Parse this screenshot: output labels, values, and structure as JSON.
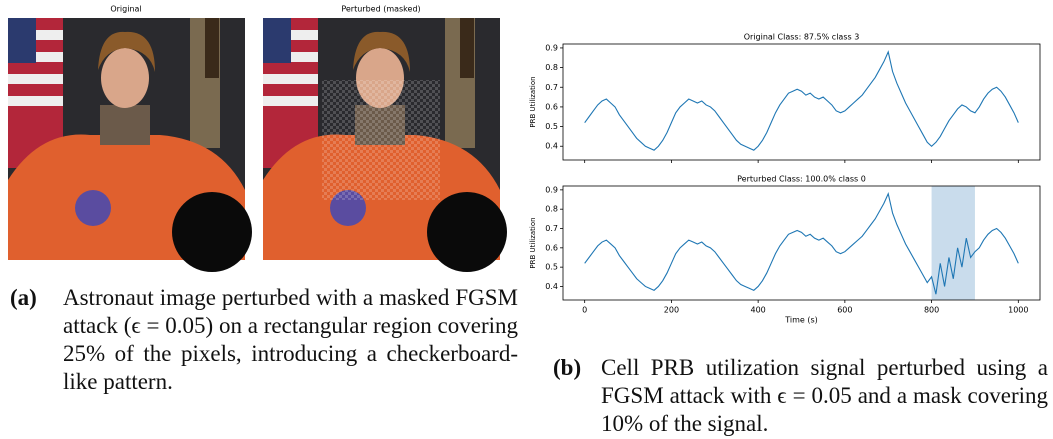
{
  "images": [
    {
      "title": "Original"
    },
    {
      "title": "Perturbed (masked)"
    }
  ],
  "caption_a": {
    "label": "(a)",
    "text": "Astronaut image perturbed with a masked FGSM attack (ϵ = 0.05) on a rectangular region covering 25% of the pixels, introducing a checkerboard-like pattern."
  },
  "caption_b": {
    "label": "(b)",
    "text": "Cell PRB utilization signal perturbed using a FGSM attack with ϵ = 0.05 and a mask covering 10% of the signal."
  },
  "chart_data": [
    {
      "type": "line",
      "title": "Original Class: 87.5% class 3",
      "ylabel": "PRB Utilization",
      "color": "#1f77b4",
      "x": [
        0,
        10,
        20,
        30,
        40,
        50,
        60,
        70,
        80,
        90,
        100,
        110,
        120,
        130,
        140,
        150,
        160,
        170,
        180,
        190,
        200,
        210,
        220,
        230,
        240,
        250,
        260,
        270,
        280,
        290,
        300,
        310,
        320,
        330,
        340,
        350,
        360,
        370,
        380,
        390,
        400,
        410,
        420,
        430,
        440,
        450,
        460,
        470,
        480,
        490,
        500,
        510,
        520,
        530,
        540,
        550,
        560,
        570,
        580,
        590,
        600,
        610,
        620,
        630,
        640,
        650,
        660,
        670,
        680,
        690,
        700,
        710,
        720,
        730,
        740,
        750,
        760,
        770,
        780,
        790,
        800,
        810,
        820,
        830,
        840,
        850,
        860,
        870,
        880,
        890,
        900,
        910,
        920,
        930,
        940,
        950,
        960,
        970,
        980,
        990,
        1000
      ],
      "values": [
        0.52,
        0.55,
        0.58,
        0.61,
        0.63,
        0.64,
        0.62,
        0.6,
        0.56,
        0.53,
        0.5,
        0.47,
        0.44,
        0.42,
        0.4,
        0.39,
        0.38,
        0.4,
        0.43,
        0.47,
        0.52,
        0.57,
        0.6,
        0.62,
        0.64,
        0.63,
        0.62,
        0.63,
        0.61,
        0.6,
        0.58,
        0.55,
        0.52,
        0.49,
        0.46,
        0.43,
        0.41,
        0.4,
        0.39,
        0.38,
        0.4,
        0.43,
        0.47,
        0.52,
        0.57,
        0.61,
        0.64,
        0.67,
        0.68,
        0.69,
        0.68,
        0.66,
        0.67,
        0.65,
        0.64,
        0.65,
        0.63,
        0.61,
        0.58,
        0.57,
        0.58,
        0.6,
        0.62,
        0.64,
        0.66,
        0.69,
        0.72,
        0.75,
        0.79,
        0.83,
        0.88,
        0.78,
        0.72,
        0.67,
        0.62,
        0.58,
        0.54,
        0.5,
        0.46,
        0.42,
        0.4,
        0.42,
        0.45,
        0.49,
        0.53,
        0.56,
        0.59,
        0.61,
        0.6,
        0.58,
        0.57,
        0.6,
        0.64,
        0.67,
        0.69,
        0.7,
        0.68,
        0.65,
        0.61,
        0.57,
        0.52
      ],
      "xlim": [
        -50,
        1050
      ],
      "xticks": [
        0,
        200,
        400,
        600,
        800,
        1000
      ],
      "xtick_labels": false,
      "ylim": [
        0.33,
        0.92
      ],
      "yticks": [
        0.4,
        0.5,
        0.6,
        0.7,
        0.8,
        0.9
      ]
    },
    {
      "type": "line",
      "title": "Perturbed Class: 100.0% class 0",
      "ylabel": "PRB Utilization",
      "xlabel": "Time (s)",
      "color": "#1f77b4",
      "x": [
        0,
        10,
        20,
        30,
        40,
        50,
        60,
        70,
        80,
        90,
        100,
        110,
        120,
        130,
        140,
        150,
        160,
        170,
        180,
        190,
        200,
        210,
        220,
        230,
        240,
        250,
        260,
        270,
        280,
        290,
        300,
        310,
        320,
        330,
        340,
        350,
        360,
        370,
        380,
        390,
        400,
        410,
        420,
        430,
        440,
        450,
        460,
        470,
        480,
        490,
        500,
        510,
        520,
        530,
        540,
        550,
        560,
        570,
        580,
        590,
        600,
        610,
        620,
        630,
        640,
        650,
        660,
        670,
        680,
        690,
        700,
        710,
        720,
        730,
        740,
        750,
        760,
        770,
        780,
        790,
        800,
        810,
        820,
        830,
        840,
        850,
        860,
        870,
        880,
        890,
        900,
        910,
        920,
        930,
        940,
        950,
        960,
        970,
        980,
        990,
        1000
      ],
      "values": [
        0.52,
        0.55,
        0.58,
        0.61,
        0.63,
        0.64,
        0.62,
        0.6,
        0.56,
        0.53,
        0.5,
        0.47,
        0.44,
        0.42,
        0.4,
        0.39,
        0.38,
        0.4,
        0.43,
        0.47,
        0.52,
        0.57,
        0.6,
        0.62,
        0.64,
        0.63,
        0.62,
        0.63,
        0.61,
        0.6,
        0.58,
        0.55,
        0.52,
        0.49,
        0.46,
        0.43,
        0.41,
        0.4,
        0.39,
        0.38,
        0.4,
        0.43,
        0.47,
        0.52,
        0.57,
        0.61,
        0.64,
        0.67,
        0.68,
        0.69,
        0.68,
        0.66,
        0.67,
        0.65,
        0.64,
        0.65,
        0.63,
        0.61,
        0.58,
        0.57,
        0.58,
        0.6,
        0.62,
        0.64,
        0.66,
        0.69,
        0.72,
        0.75,
        0.79,
        0.83,
        0.88,
        0.78,
        0.72,
        0.67,
        0.62,
        0.58,
        0.54,
        0.5,
        0.46,
        0.42,
        0.45,
        0.36,
        0.52,
        0.4,
        0.55,
        0.44,
        0.6,
        0.5,
        0.65,
        0.55,
        0.58,
        0.6,
        0.64,
        0.67,
        0.69,
        0.7,
        0.68,
        0.65,
        0.61,
        0.57,
        0.52
      ],
      "shade": [
        800,
        900
      ],
      "shade_color": "#c9dcec",
      "xlim": [
        -50,
        1050
      ],
      "xticks": [
        0,
        200,
        400,
        600,
        800,
        1000
      ],
      "xtick_labels": true,
      "ylim": [
        0.33,
        0.92
      ],
      "yticks": [
        0.4,
        0.5,
        0.6,
        0.7,
        0.8,
        0.9
      ]
    }
  ]
}
